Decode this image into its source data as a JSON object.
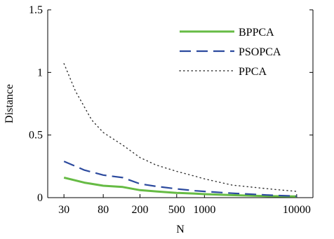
{
  "chart_data": {
    "type": "line",
    "x_scale": "log",
    "xlabel": "N",
    "ylabel": "Distance",
    "ylim": [
      0,
      1.5
    ],
    "xlim": [
      20,
      15000
    ],
    "x_tick_values": [
      30,
      80,
      200,
      500,
      1000,
      10000
    ],
    "x_tick_labels": [
      "30",
      "80",
      "200",
      "500",
      "1000",
      "10000"
    ],
    "y_tick_values": [
      0,
      0.5,
      1,
      1.5
    ],
    "y_tick_labels": [
      "0",
      "0.5",
      "1",
      "1.5"
    ],
    "legend_position": "top-right",
    "series": [
      {
        "name": "BPPCA",
        "style": "solid",
        "color": "#66bb44",
        "x": [
          30,
          50,
          80,
          130,
          200,
          300,
          500,
          800,
          1000,
          2000,
          5000,
          10000
        ],
        "y": [
          0.16,
          0.12,
          0.095,
          0.085,
          0.06,
          0.05,
          0.038,
          0.032,
          0.028,
          0.02,
          0.012,
          0.01
        ]
      },
      {
        "name": "PSOPCA",
        "style": "dashed",
        "color": "#2c4a9e",
        "x": [
          30,
          50,
          80,
          130,
          200,
          300,
          500,
          800,
          1000,
          2000,
          5000,
          10000
        ],
        "y": [
          0.29,
          0.22,
          0.18,
          0.16,
          0.11,
          0.09,
          0.07,
          0.055,
          0.05,
          0.035,
          0.02,
          0.012
        ]
      },
      {
        "name": "PPCA",
        "style": "dotted",
        "color": "#333333",
        "x": [
          30,
          40,
          60,
          80,
          130,
          200,
          300,
          500,
          800,
          1000,
          2000,
          5000,
          10000
        ],
        "y": [
          1.07,
          0.85,
          0.62,
          0.52,
          0.42,
          0.32,
          0.26,
          0.21,
          0.17,
          0.15,
          0.1,
          0.07,
          0.05
        ]
      }
    ]
  }
}
